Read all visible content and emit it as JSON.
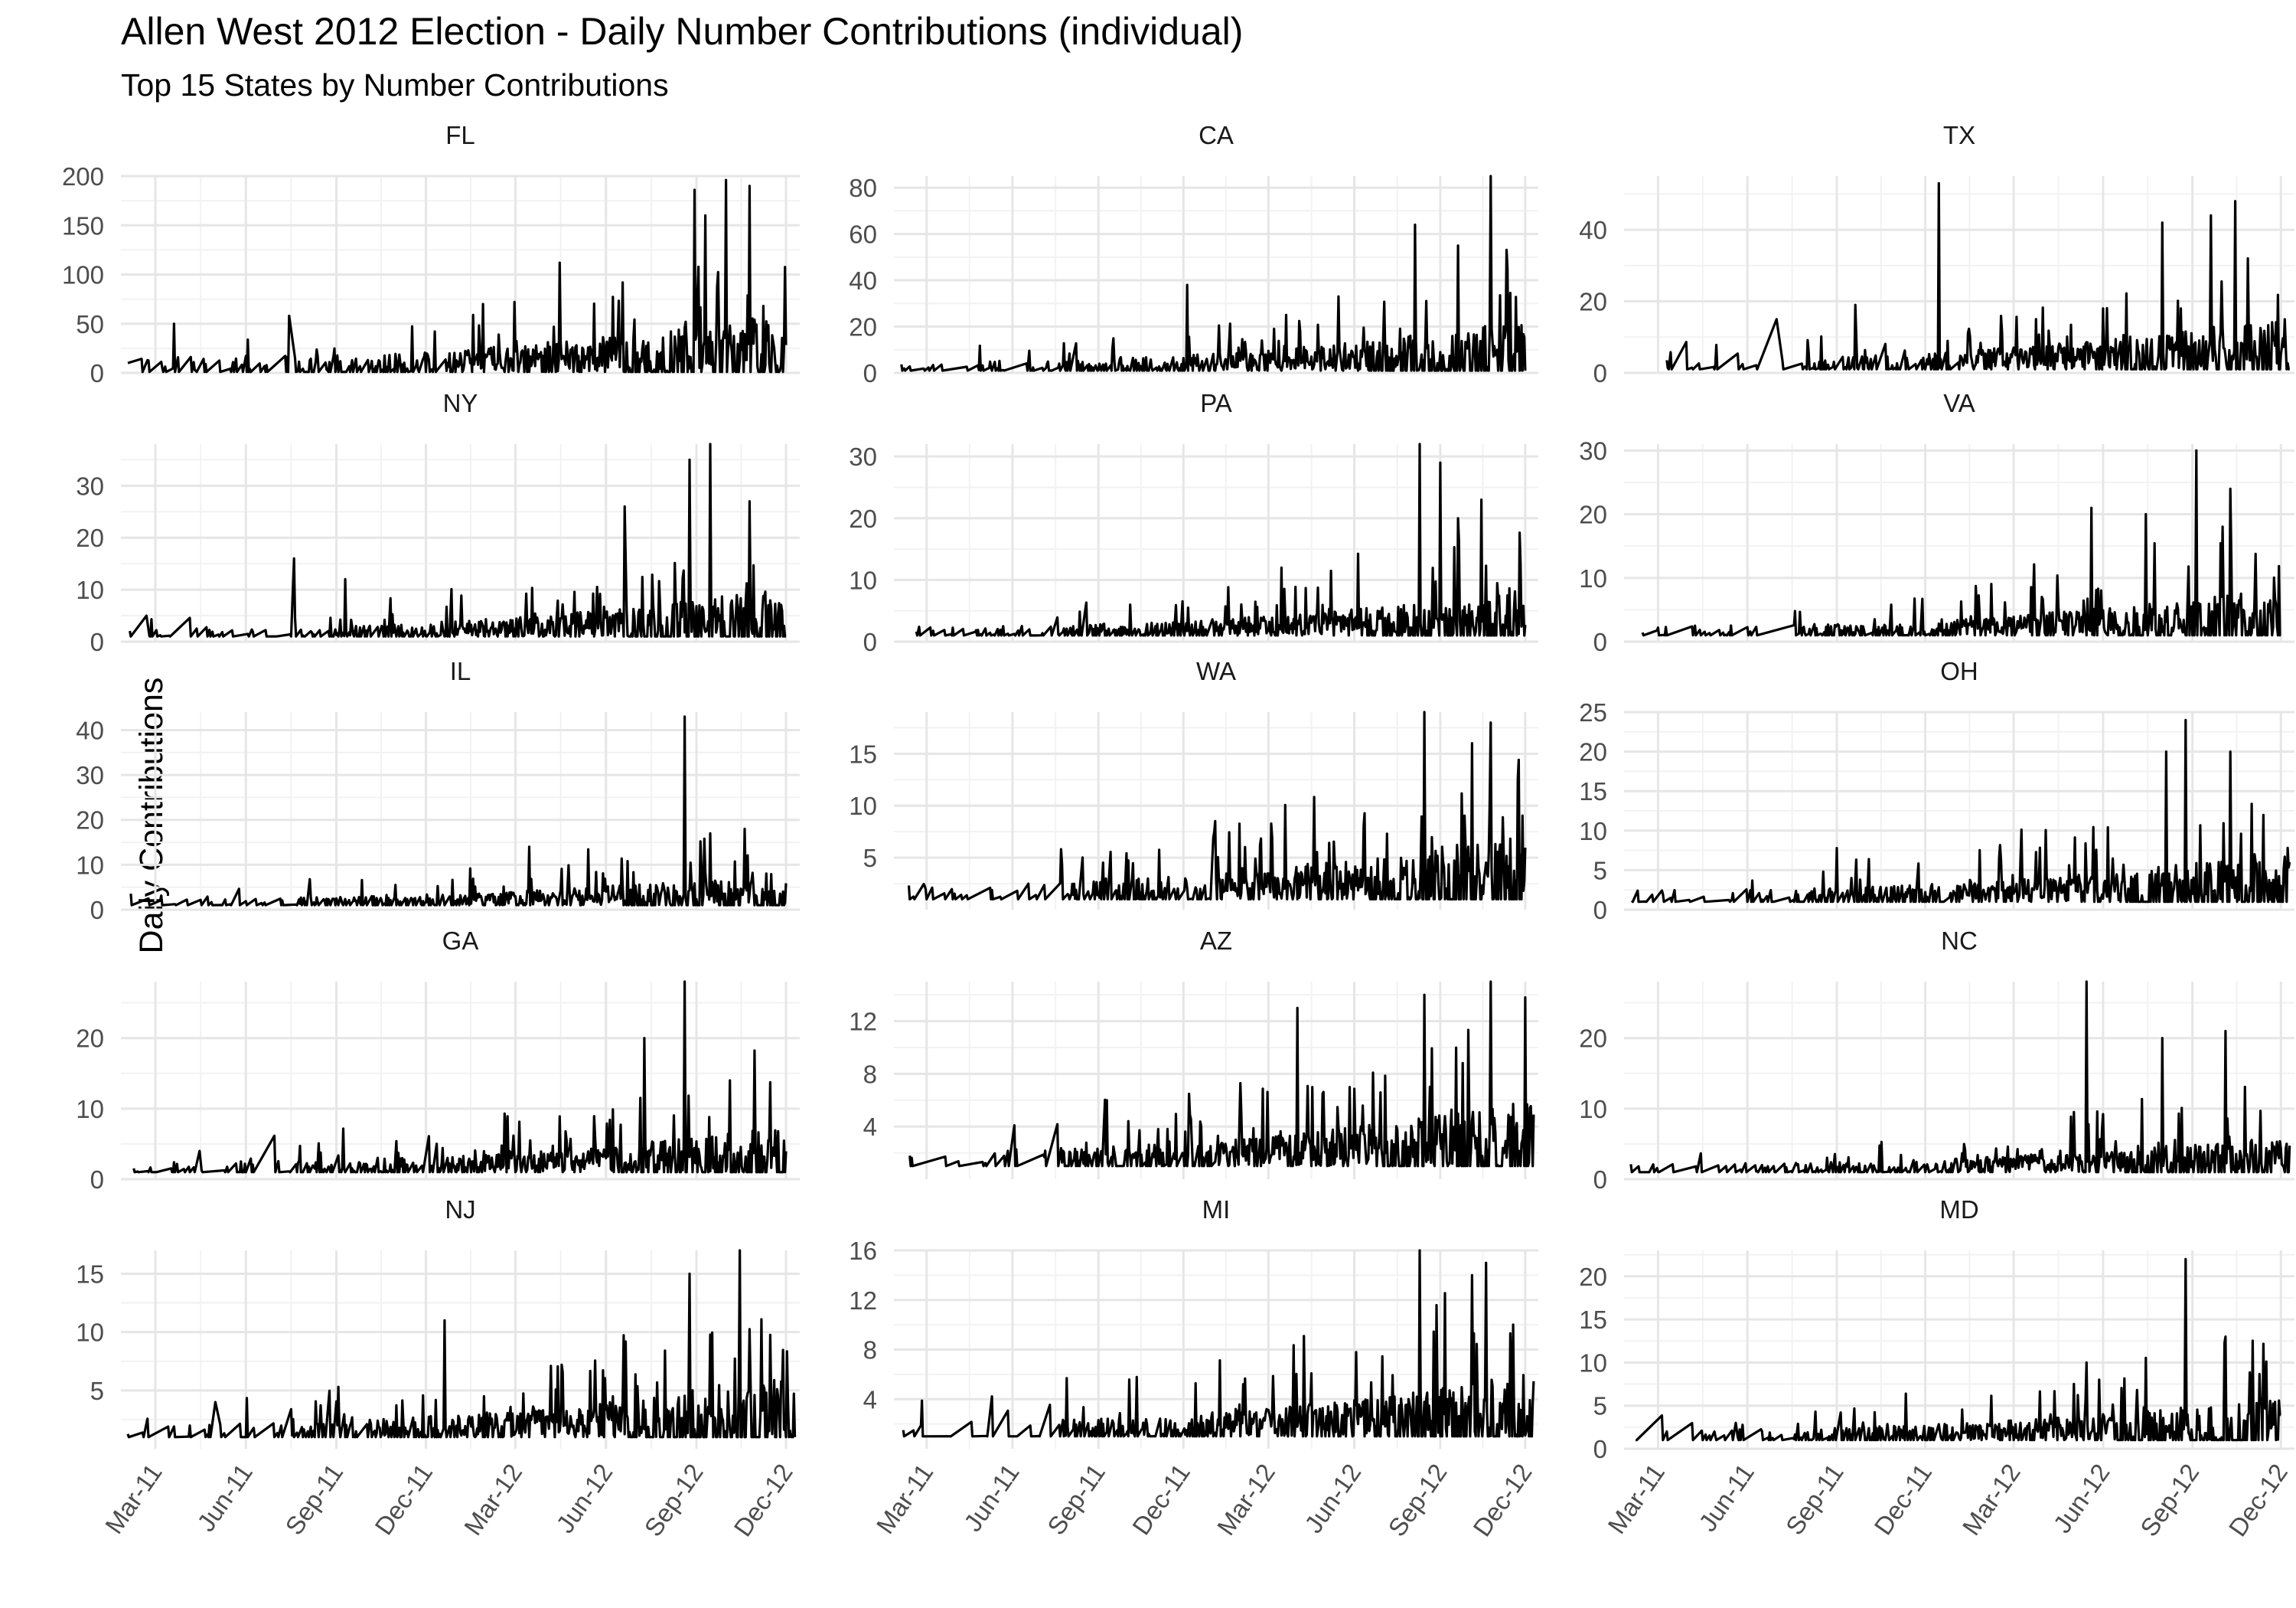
{
  "chart_data": {
    "type": "line",
    "title": "Allen West 2012 Election - Daily Number Contributions (individual)",
    "subtitle": "Top 15 States by Number Contributions",
    "xlabel": "",
    "ylabel": "Daily Contributions",
    "x_ticks": [
      "Mar-11",
      "Jun-11",
      "Sep-11",
      "Dec-11",
      "Mar-12",
      "Jun-12",
      "Sep-12",
      "Dec-12"
    ],
    "x_range": [
      "2011-01-25",
      "2012-12-15"
    ],
    "grid": true,
    "layout": "facet grid 5 rows x 3 columns, free y scales, shared x axis",
    "line_color": "#000000",
    "panels": [
      {
        "name": "FL",
        "ylim": [
          0,
          200
        ],
        "yticks": [
          0,
          50,
          100,
          150,
          200
        ],
        "start": "2011-02-01",
        "end": "2012-12-01",
        "base": 15,
        "growth": 45,
        "spike_every": 9,
        "series": [
          {
            "x": "2011-02-01",
            "y": 10
          },
          {
            "x": "2011-03-20",
            "y": 50
          },
          {
            "x": "2011-07-15",
            "y": 58
          },
          {
            "x": "2011-12-10",
            "y": 42
          },
          {
            "x": "2012-01-28",
            "y": 70
          },
          {
            "x": "2012-04-15",
            "y": 112
          },
          {
            "x": "2012-06-18",
            "y": 92
          },
          {
            "x": "2012-08-30",
            "y": 186
          },
          {
            "x": "2012-09-10",
            "y": 160
          },
          {
            "x": "2012-10-01",
            "y": 196
          },
          {
            "x": "2012-10-25",
            "y": 190
          },
          {
            "x": "2012-11-08",
            "y": 68
          }
        ]
      },
      {
        "name": "CA",
        "ylim": [
          0,
          85
        ],
        "yticks": [
          0,
          20,
          40,
          60,
          80
        ],
        "start": "2011-02-01",
        "end": "2012-12-01",
        "base": 4,
        "growth": 18,
        "spike_every": 8,
        "series": [
          {
            "x": "2011-12-05",
            "y": 38
          },
          {
            "x": "2012-03-20",
            "y": 25
          },
          {
            "x": "2012-05-15",
            "y": 33
          },
          {
            "x": "2012-08-05",
            "y": 64
          },
          {
            "x": "2012-09-20",
            "y": 55
          },
          {
            "x": "2012-10-25",
            "y": 85
          },
          {
            "x": "2012-11-12",
            "y": 45
          }
        ]
      },
      {
        "name": "TX",
        "ylim": [
          0,
          55
        ],
        "yticks": [
          0,
          20,
          40
        ],
        "start": "2011-02-01",
        "end": "2012-12-10",
        "base": 3,
        "growth": 12,
        "spike_every": 7,
        "series": [
          {
            "x": "2011-07-01",
            "y": 15
          },
          {
            "x": "2011-09-20",
            "y": 19
          },
          {
            "x": "2011-12-15",
            "y": 53
          },
          {
            "x": "2012-06-01",
            "y": 18
          },
          {
            "x": "2012-08-01",
            "y": 42
          },
          {
            "x": "2012-09-20",
            "y": 44
          },
          {
            "x": "2012-10-15",
            "y": 48
          },
          {
            "x": "2012-10-28",
            "y": 32
          }
        ]
      },
      {
        "name": "NY",
        "ylim": [
          0,
          38
        ],
        "yticks": [
          0,
          10,
          20,
          30
        ],
        "start": "2011-02-01",
        "end": "2012-12-01",
        "base": 1.5,
        "growth": 8,
        "spike_every": 8,
        "series": [
          {
            "x": "2011-02-20",
            "y": 5
          },
          {
            "x": "2011-07-20",
            "y": 16
          },
          {
            "x": "2011-09-10",
            "y": 12
          },
          {
            "x": "2012-06-20",
            "y": 26
          },
          {
            "x": "2012-08-25",
            "y": 35
          },
          {
            "x": "2012-09-15",
            "y": 38
          },
          {
            "x": "2012-10-25",
            "y": 27
          }
        ]
      },
      {
        "name": "PA",
        "ylim": [
          0,
          32
        ],
        "yticks": [
          0,
          10,
          20,
          30
        ],
        "start": "2011-02-01",
        "end": "2012-12-01",
        "base": 1.5,
        "growth": 6,
        "spike_every": 8,
        "series": [
          {
            "x": "2012-03-15",
            "y": 12
          },
          {
            "x": "2012-08-10",
            "y": 32
          },
          {
            "x": "2012-09-01",
            "y": 29
          },
          {
            "x": "2012-09-20",
            "y": 20
          },
          {
            "x": "2012-10-15",
            "y": 23
          }
        ]
      },
      {
        "name": "VA",
        "ylim": [
          0,
          31
        ],
        "yticks": [
          0,
          10,
          20,
          30
        ],
        "start": "2011-02-01",
        "end": "2012-12-01",
        "base": 1.5,
        "growth": 6,
        "spike_every": 8,
        "series": [
          {
            "x": "2012-05-20",
            "y": 21
          },
          {
            "x": "2012-07-15",
            "y": 20
          },
          {
            "x": "2012-09-05",
            "y": 30
          },
          {
            "x": "2012-10-10",
            "y": 24
          }
        ]
      },
      {
        "name": "IL",
        "ylim": [
          0,
          44
        ],
        "yticks": [
          0,
          10,
          20,
          30,
          40
        ],
        "start": "2011-02-01",
        "end": "2012-12-01",
        "base": 1.5,
        "growth": 6,
        "spike_every": 8,
        "series": [
          {
            "x": "2012-03-15",
            "y": 14
          },
          {
            "x": "2012-08-20",
            "y": 43
          },
          {
            "x": "2012-09-15",
            "y": 17
          },
          {
            "x": "2012-10-20",
            "y": 18
          }
        ]
      },
      {
        "name": "WA",
        "ylim": [
          0,
          19
        ],
        "yticks": [
          5,
          10,
          15
        ],
        "start": "2011-02-01",
        "end": "2012-12-01",
        "base": 1.5,
        "growth": 5,
        "spike_every": 7,
        "series": [
          {
            "x": "2012-08-15",
            "y": 19
          },
          {
            "x": "2012-10-05",
            "y": 16
          },
          {
            "x": "2012-10-25",
            "y": 18
          }
        ]
      },
      {
        "name": "OH",
        "ylim": [
          0,
          25
        ],
        "yticks": [
          0,
          5,
          10,
          15,
          20,
          25
        ],
        "start": "2011-02-01",
        "end": "2012-12-10",
        "base": 1.5,
        "growth": 5,
        "spike_every": 8,
        "series": [
          {
            "x": "2012-08-05",
            "y": 20
          },
          {
            "x": "2012-08-25",
            "y": 24
          },
          {
            "x": "2012-10-10",
            "y": 20
          }
        ]
      },
      {
        "name": "GA",
        "ylim": [
          0,
          28
        ],
        "yticks": [
          0,
          10,
          20
        ],
        "start": "2011-02-01",
        "end": "2012-12-01",
        "base": 1.5,
        "growth": 5,
        "spike_every": 8,
        "series": [
          {
            "x": "2011-04-15",
            "y": 4
          },
          {
            "x": "2012-07-10",
            "y": 20
          },
          {
            "x": "2012-08-20",
            "y": 28
          },
          {
            "x": "2012-10-05",
            "y": 14
          }
        ]
      },
      {
        "name": "AZ",
        "ylim": [
          0,
          15
        ],
        "yticks": [
          4,
          8,
          12
        ],
        "start": "2011-02-01",
        "end": "2012-12-10",
        "base": 1.2,
        "growth": 4,
        "spike_every": 7,
        "series": [
          {
            "x": "2011-09-10",
            "y": 6
          },
          {
            "x": "2012-04-01",
            "y": 13
          },
          {
            "x": "2012-08-15",
            "y": 14
          },
          {
            "x": "2012-10-25",
            "y": 15
          }
        ]
      },
      {
        "name": "NC",
        "ylim": [
          0,
          28
        ],
        "yticks": [
          0,
          10,
          20
        ],
        "start": "2011-02-01",
        "end": "2012-12-10",
        "base": 1.2,
        "growth": 4,
        "spike_every": 8,
        "series": [
          {
            "x": "2012-05-15",
            "y": 28
          },
          {
            "x": "2012-08-01",
            "y": 20
          },
          {
            "x": "2012-10-05",
            "y": 21
          }
        ]
      },
      {
        "name": "NJ",
        "ylim": [
          0,
          17
        ],
        "yticks": [
          5,
          10,
          15
        ],
        "start": "2011-02-01",
        "end": "2012-12-10",
        "base": 1.2,
        "growth": 4,
        "spike_every": 8,
        "series": [
          {
            "x": "2011-05-01",
            "y": 4
          },
          {
            "x": "2011-12-20",
            "y": 11
          },
          {
            "x": "2012-08-25",
            "y": 15
          },
          {
            "x": "2012-10-15",
            "y": 17
          }
        ]
      },
      {
        "name": "MI",
        "ylim": [
          0,
          16
        ],
        "yticks": [
          4,
          8,
          12,
          16
        ],
        "start": "2011-02-01",
        "end": "2012-12-10",
        "base": 1.2,
        "growth": 4,
        "spike_every": 8,
        "series": [
          {
            "x": "2012-08-10",
            "y": 16
          },
          {
            "x": "2012-10-05",
            "y": 14
          },
          {
            "x": "2012-10-20",
            "y": 15
          }
        ]
      },
      {
        "name": "MD",
        "ylim": [
          0,
          23
        ],
        "yticks": [
          0,
          5,
          10,
          15,
          20
        ],
        "start": "2011-02-01",
        "end": "2012-12-01",
        "base": 1.2,
        "growth": 4,
        "spike_every": 8,
        "series": [
          {
            "x": "2011-05-20",
            "y": 3
          },
          {
            "x": "2012-05-15",
            "y": 10
          },
          {
            "x": "2012-08-25",
            "y": 22
          },
          {
            "x": "2012-10-05",
            "y": 13
          }
        ]
      }
    ]
  }
}
